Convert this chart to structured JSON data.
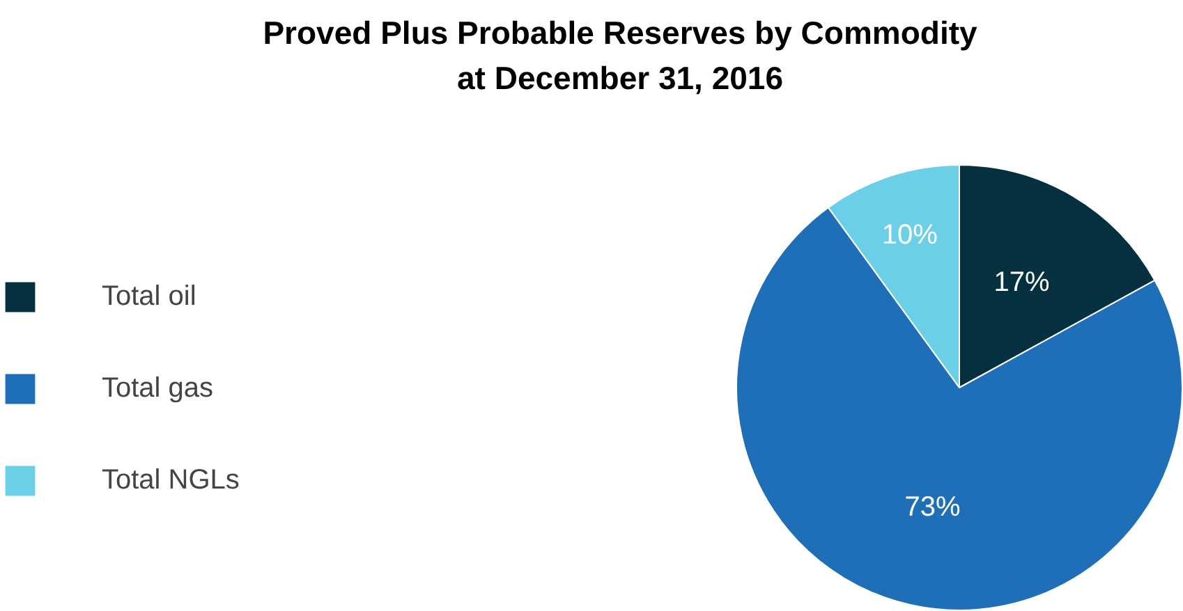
{
  "chart_data": {
    "type": "pie",
    "title": "Proved Plus Probable Reserves by Commodity\nat December 31, 2016",
    "categories": [
      "Total oil",
      "Total gas",
      "Total NGLs"
    ],
    "values": [
      17,
      73,
      10
    ],
    "colors": [
      "#04303f",
      "#1f6fb8",
      "#6ccfe8"
    ],
    "value_labels": [
      "17%",
      "73%",
      "10%"
    ],
    "legend": "left"
  }
}
